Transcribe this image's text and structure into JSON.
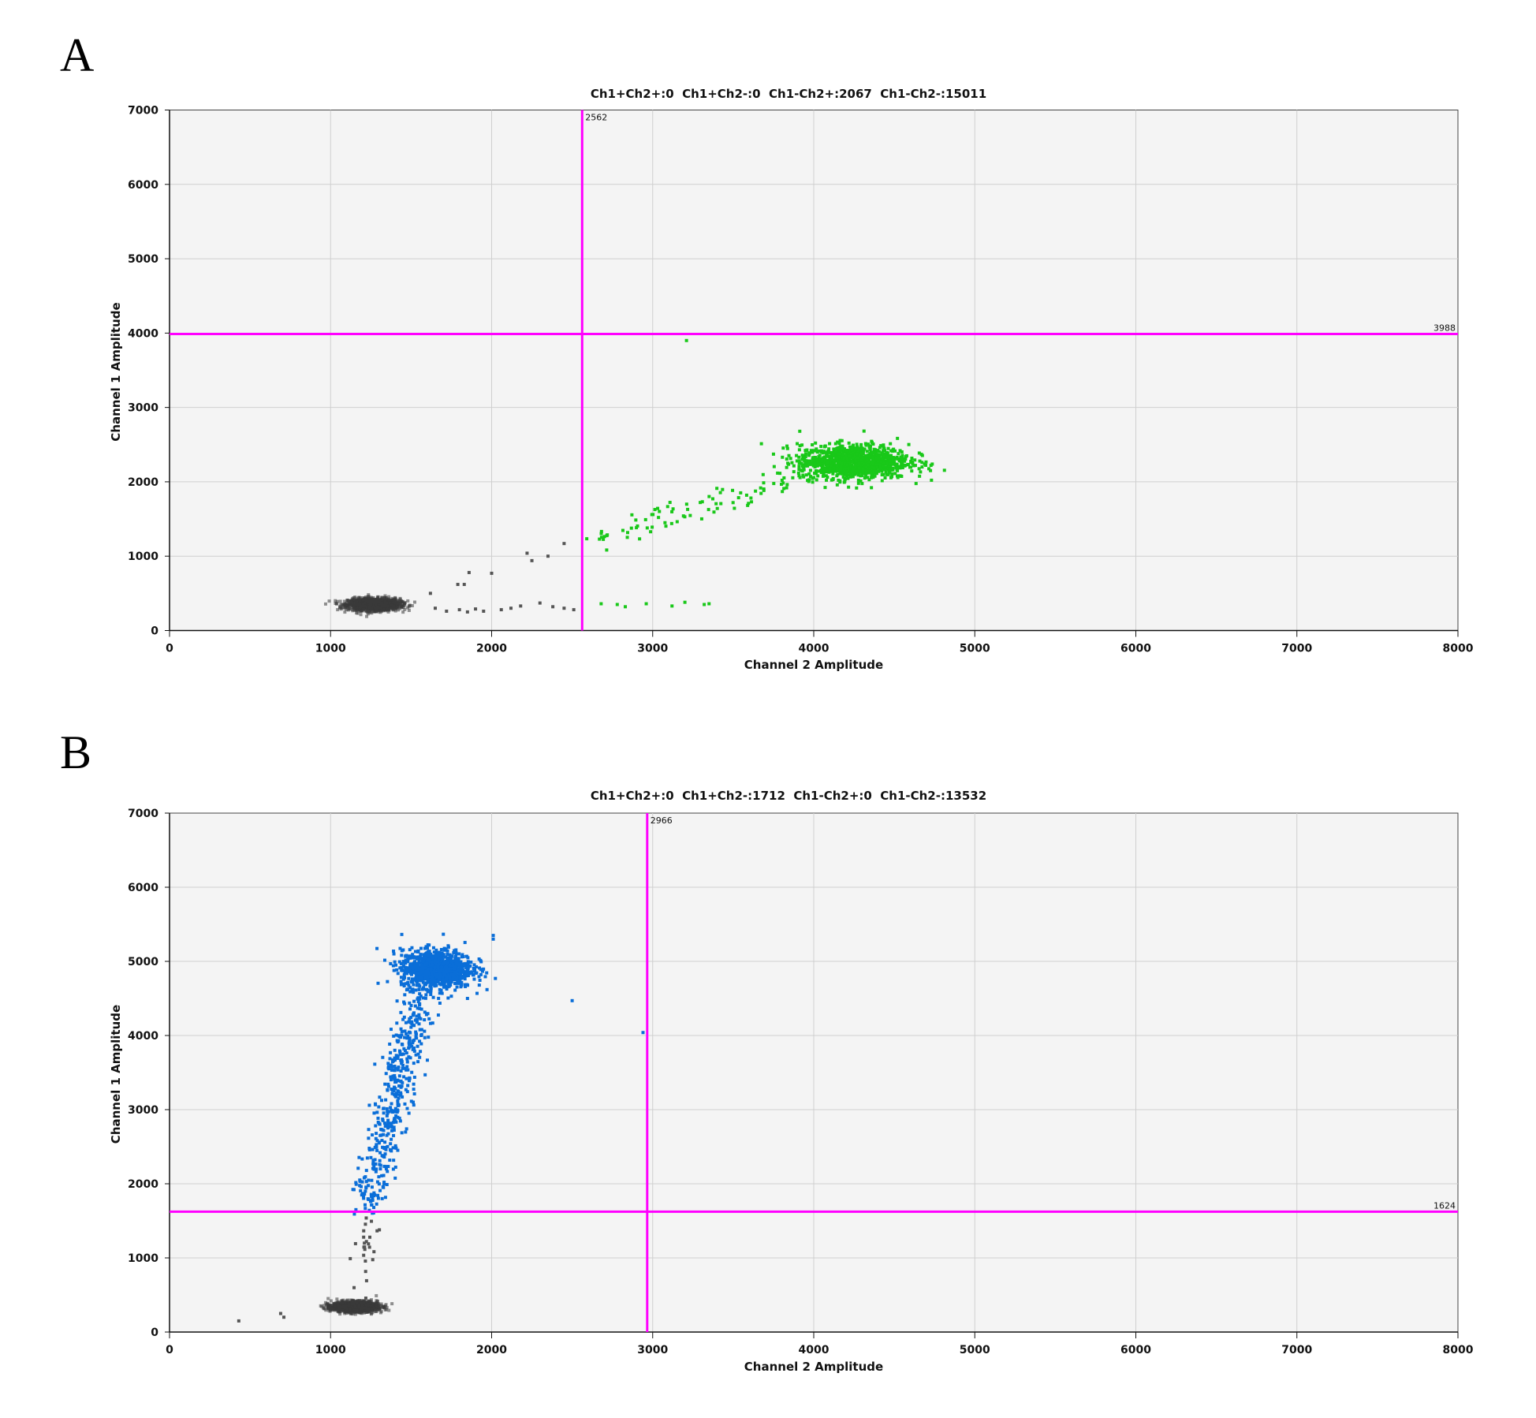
{
  "panels": [
    {
      "letter": "A"
    },
    {
      "letter": "B"
    }
  ],
  "chart_data": [
    {
      "type": "scatter",
      "title": "Ch1+Ch2+:0  Ch1+Ch2-:0  Ch1-Ch2+:2067  Ch1-Ch2-:15011",
      "xlabel": "Channel 2 Amplitude",
      "ylabel": "Channel 1 Amplitude",
      "xlim": [
        0,
        8000
      ],
      "ylim": [
        0,
        7000
      ],
      "xticks": [
        "0",
        "1000",
        "2000",
        "3000",
        "4000",
        "5000",
        "6000",
        "7000",
        "8000"
      ],
      "yticks": [
        "0",
        "1000",
        "2000",
        "3000",
        "4000",
        "5000",
        "6000",
        "7000"
      ],
      "grid": true,
      "threshold_x": 2562,
      "threshold_y": 3988,
      "threshold_x_label": "2562",
      "threshold_y_label": "3988",
      "threshold_color": "#ff00ff",
      "clusters": [
        {
          "name_hint": "Ch1-Ch2-",
          "color": "#3a3a3a",
          "center": [
            1270,
            350
          ],
          "sd": [
            80,
            40
          ],
          "count": 1500
        },
        {
          "name_hint": "Ch1-Ch2+",
          "color": "#19c819",
          "center": [
            4250,
            2270
          ],
          "sd": [
            170,
            115
          ],
          "count": 1100
        },
        {
          "name_hint": "Ch1-Ch2+ tail",
          "color": "#19c819",
          "line_from": [
            2650,
            1250
          ],
          "line_to": [
            4050,
            2150
          ],
          "jitter": [
            60,
            90
          ],
          "count": 90
        }
      ],
      "points": [
        {
          "x": 1650,
          "y": 300,
          "color": "#555555"
        },
        {
          "x": 1720,
          "y": 260,
          "color": "#555555"
        },
        {
          "x": 1800,
          "y": 280,
          "color": "#555555"
        },
        {
          "x": 1850,
          "y": 250,
          "color": "#555555"
        },
        {
          "x": 1900,
          "y": 290,
          "color": "#555555"
        },
        {
          "x": 1950,
          "y": 260,
          "color": "#555555"
        },
        {
          "x": 2060,
          "y": 280,
          "color": "#555555"
        },
        {
          "x": 2120,
          "y": 300,
          "color": "#555555"
        },
        {
          "x": 2180,
          "y": 330,
          "color": "#555555"
        },
        {
          "x": 2300,
          "y": 370,
          "color": "#555555"
        },
        {
          "x": 2380,
          "y": 320,
          "color": "#555555"
        },
        {
          "x": 2450,
          "y": 300,
          "color": "#555555"
        },
        {
          "x": 2510,
          "y": 280,
          "color": "#555555"
        },
        {
          "x": 1620,
          "y": 500,
          "color": "#555555"
        },
        {
          "x": 1830,
          "y": 620,
          "color": "#555555"
        },
        {
          "x": 1860,
          "y": 780,
          "color": "#555555"
        },
        {
          "x": 1790,
          "y": 620,
          "color": "#555555"
        },
        {
          "x": 2000,
          "y": 770,
          "color": "#555555"
        },
        {
          "x": 2220,
          "y": 1040,
          "color": "#555555"
        },
        {
          "x": 2250,
          "y": 940,
          "color": "#555555"
        },
        {
          "x": 2350,
          "y": 1000,
          "color": "#555555"
        },
        {
          "x": 2450,
          "y": 1170,
          "color": "#555555"
        },
        {
          "x": 2680,
          "y": 360,
          "color": "#19c819"
        },
        {
          "x": 2780,
          "y": 350,
          "color": "#19c819"
        },
        {
          "x": 2830,
          "y": 320,
          "color": "#19c819"
        },
        {
          "x": 2960,
          "y": 360,
          "color": "#19c819"
        },
        {
          "x": 3120,
          "y": 330,
          "color": "#19c819"
        },
        {
          "x": 3200,
          "y": 380,
          "color": "#19c819"
        },
        {
          "x": 3320,
          "y": 350,
          "color": "#19c819"
        },
        {
          "x": 3350,
          "y": 360,
          "color": "#19c819"
        },
        {
          "x": 3210,
          "y": 3900,
          "color": "#19c819"
        }
      ]
    },
    {
      "type": "scatter",
      "title": "Ch1+Ch2+:0  Ch1+Ch2-:1712  Ch1-Ch2+:0  Ch1-Ch2-:13532",
      "xlabel": "Channel 2 Amplitude",
      "ylabel": "Channel 1 Amplitude",
      "xlim": [
        0,
        8000
      ],
      "ylim": [
        0,
        7000
      ],
      "xticks": [
        "0",
        "1000",
        "2000",
        "3000",
        "4000",
        "5000",
        "6000",
        "7000",
        "8000"
      ],
      "yticks": [
        "0",
        "1000",
        "2000",
        "3000",
        "4000",
        "5000",
        "6000",
        "7000"
      ],
      "grid": true,
      "threshold_x": 2966,
      "threshold_y": 1624,
      "threshold_x_label": "2966",
      "threshold_y_label": "1624",
      "threshold_color": "#ff00ff",
      "clusters": [
        {
          "name_hint": "Ch1-Ch2-",
          "color": "#3a3a3a",
          "center": [
            1150,
            340
          ],
          "sd": [
            70,
            35
          ],
          "count": 1500
        },
        {
          "name_hint": "Ch1+Ch2-",
          "color": "#0a6ed8",
          "center": [
            1660,
            4900
          ],
          "sd": [
            110,
            130
          ],
          "count": 1000
        },
        {
          "name_hint": "Ch1+Ch2- tail",
          "color": "#0a6ed8",
          "line_from": [
            1230,
            1700
          ],
          "line_to": [
            1560,
            4600
          ],
          "jitter": [
            55,
            120
          ],
          "count": 450
        },
        {
          "name_hint": "rain",
          "color": "#555555",
          "line_from": [
            1180,
            450
          ],
          "line_to": [
            1260,
            1550
          ],
          "jitter": [
            40,
            60
          ],
          "count": 25
        }
      ],
      "points": [
        {
          "x": 430,
          "y": 150,
          "color": "#555555"
        },
        {
          "x": 690,
          "y": 250,
          "color": "#555555"
        },
        {
          "x": 710,
          "y": 200,
          "color": "#555555"
        },
        {
          "x": 2500,
          "y": 4470,
          "color": "#0a6ed8"
        },
        {
          "x": 2940,
          "y": 4040,
          "color": "#0a6ed8"
        },
        {
          "x": 2010,
          "y": 5350,
          "color": "#0a6ed8"
        },
        {
          "x": 2010,
          "y": 5300,
          "color": "#0a6ed8"
        },
        {
          "x": 1850,
          "y": 4500,
          "color": "#0a6ed8"
        },
        {
          "x": 1750,
          "y": 4530,
          "color": "#0a6ed8"
        }
      ]
    }
  ]
}
